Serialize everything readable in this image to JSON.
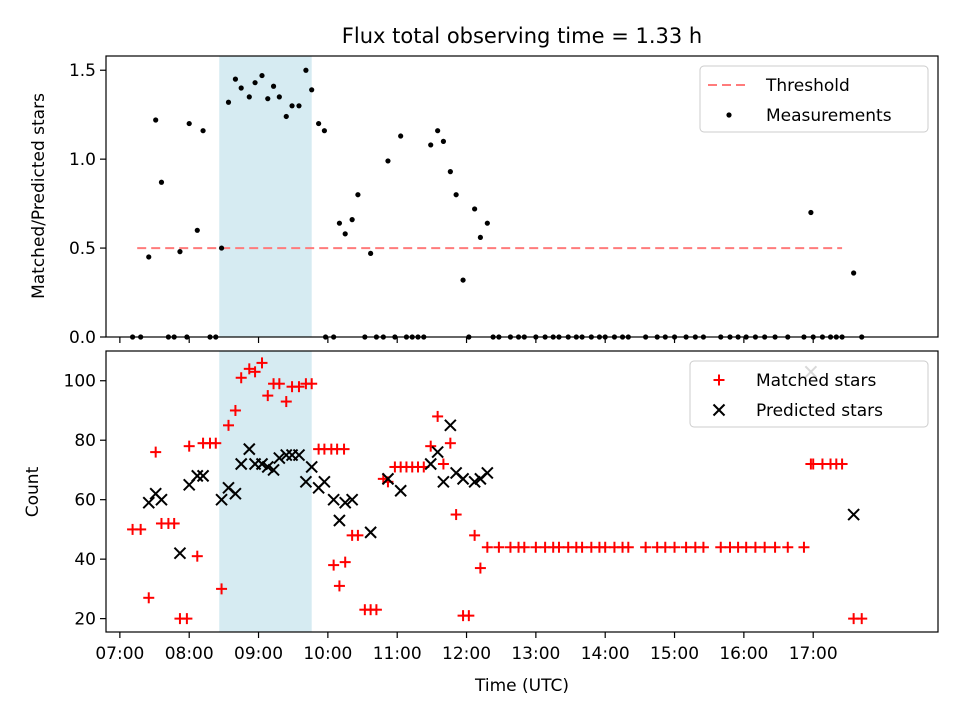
{
  "chart_data": [
    {
      "type": "scatter",
      "title": "Flux total observing time = 1.33 h",
      "xlabel": "",
      "ylabel": "Matched/Predicted stars",
      "xlim": [
        "06:48",
        "18:48"
      ],
      "ylim": [
        0,
        1.58
      ],
      "yticks": [
        0.0,
        0.5,
        1.0,
        1.5
      ],
      "yticklabels": [
        "0.0",
        "0.5",
        "1.0",
        "1.5"
      ],
      "shaded_interval": [
        "08:26",
        "09:46"
      ],
      "legend": {
        "position": "top-right",
        "entries": [
          "Threshold",
          "Measurements"
        ]
      },
      "threshold": {
        "name": "Threshold",
        "y": 0.5,
        "x_range": [
          "07:15",
          "17:25"
        ],
        "color": "#ff7b7b"
      },
      "series": [
        {
          "name": "Measurements",
          "color": "#000000",
          "points": [
            [
              "07:11",
              0
            ],
            [
              "07:18",
              0
            ],
            [
              "07:25",
              0.45
            ],
            [
              "07:31",
              1.22
            ],
            [
              "07:36",
              0.87
            ],
            [
              "07:42",
              0
            ],
            [
              "07:47",
              0
            ],
            [
              "07:52",
              0.48
            ],
            [
              "07:58",
              0
            ],
            [
              "08:00",
              1.2
            ],
            [
              "08:07",
              0.6
            ],
            [
              "08:12",
              1.16
            ],
            [
              "08:18",
              0
            ],
            [
              "08:23",
              0
            ],
            [
              "08:28",
              0.5
            ],
            [
              "08:34",
              1.32
            ],
            [
              "08:40",
              1.45
            ],
            [
              "08:45",
              1.4
            ],
            [
              "08:52",
              1.35
            ],
            [
              "08:57",
              1.43
            ],
            [
              "09:03",
              1.47
            ],
            [
              "09:08",
              1.34
            ],
            [
              "09:13",
              1.41
            ],
            [
              "09:18",
              1.35
            ],
            [
              "09:24",
              1.24
            ],
            [
              "09:29",
              1.3
            ],
            [
              "09:35",
              1.3
            ],
            [
              "09:41",
              1.5
            ],
            [
              "09:46",
              1.39
            ],
            [
              "09:52",
              1.2
            ],
            [
              "09:57",
              1.16
            ],
            [
              "09:58",
              0
            ],
            [
              "10:05",
              0
            ],
            [
              "10:10",
              0.64
            ],
            [
              "10:15",
              0.58
            ],
            [
              "10:21",
              0.66
            ],
            [
              "10:26",
              0.8
            ],
            [
              "10:32",
              0
            ],
            [
              "10:37",
              0.47
            ],
            [
              "10:42",
              0
            ],
            [
              "10:48",
              0
            ],
            [
              "10:52",
              0.99
            ],
            [
              "10:58",
              0
            ],
            [
              "11:03",
              1.13
            ],
            [
              "11:08",
              0
            ],
            [
              "11:13",
              0
            ],
            [
              "11:18",
              0
            ],
            [
              "11:23",
              0
            ],
            [
              "11:29",
              1.08
            ],
            [
              "11:35",
              1.16
            ],
            [
              "11:40",
              1.1
            ],
            [
              "11:46",
              0.93
            ],
            [
              "11:51",
              0.8
            ],
            [
              "11:57",
              0.32
            ],
            [
              "12:02",
              0
            ],
            [
              "12:07",
              0.72
            ],
            [
              "12:12",
              0.56
            ],
            [
              "12:18",
              0.64
            ],
            [
              "12:23",
              0
            ],
            [
              "12:28",
              0
            ],
            [
              "12:38",
              0
            ],
            [
              "12:45",
              0
            ],
            [
              "12:50",
              0
            ],
            [
              "13:00",
              0
            ],
            [
              "13:08",
              0
            ],
            [
              "13:15",
              0
            ],
            [
              "13:20",
              0
            ],
            [
              "13:28",
              0
            ],
            [
              "13:35",
              0
            ],
            [
              "13:40",
              0
            ],
            [
              "13:48",
              0
            ],
            [
              "13:55",
              0
            ],
            [
              "14:00",
              0
            ],
            [
              "14:08",
              0
            ],
            [
              "14:15",
              0
            ],
            [
              "14:20",
              0
            ],
            [
              "14:35",
              0
            ],
            [
              "14:45",
              0
            ],
            [
              "14:52",
              0
            ],
            [
              "15:00",
              0
            ],
            [
              "15:10",
              0
            ],
            [
              "15:18",
              0
            ],
            [
              "15:25",
              0
            ],
            [
              "15:40",
              0
            ],
            [
              "15:48",
              0
            ],
            [
              "15:55",
              0
            ],
            [
              "16:02",
              0
            ],
            [
              "16:10",
              0
            ],
            [
              "16:18",
              0
            ],
            [
              "16:27",
              0
            ],
            [
              "16:38",
              0
            ],
            [
              "16:52",
              0
            ],
            [
              "17:00",
              0
            ],
            [
              "17:08",
              0
            ],
            [
              "17:15",
              0
            ],
            [
              "17:20",
              0
            ],
            [
              "17:25",
              0
            ],
            [
              "16:58",
              0.7
            ],
            [
              "17:35",
              0.36
            ],
            [
              "17:42",
              0
            ]
          ]
        }
      ]
    },
    {
      "type": "scatter",
      "title": "",
      "xlabel": "Time (UTC)",
      "ylabel": "Count",
      "xlim": [
        "06:48",
        "18:48"
      ],
      "ylim": [
        15.5,
        110
      ],
      "xticks": [
        "07:00",
        "08:00",
        "09:00",
        "10:00",
        "11:00",
        "12:00",
        "13:00",
        "14:00",
        "15:00",
        "16:00",
        "17:00"
      ],
      "yticks": [
        20,
        40,
        60,
        80,
        100
      ],
      "yticklabels": [
        "20",
        "40",
        "60",
        "80",
        "100"
      ],
      "shaded_interval": [
        "08:26",
        "09:46"
      ],
      "legend": {
        "position": "top-right",
        "entries": [
          "Matched stars",
          "Predicted stars"
        ]
      },
      "series": [
        {
          "name": "Matched stars",
          "marker": "plus",
          "color": "#ff0000",
          "points": [
            [
              "07:11",
              50
            ],
            [
              "07:18",
              50
            ],
            [
              "07:25",
              27
            ],
            [
              "07:31",
              76
            ],
            [
              "07:36",
              52
            ],
            [
              "07:42",
              52
            ],
            [
              "07:47",
              52
            ],
            [
              "07:52",
              20
            ],
            [
              "07:58",
              20
            ],
            [
              "08:00",
              78
            ],
            [
              "08:07",
              41
            ],
            [
              "08:12",
              79
            ],
            [
              "08:18",
              79
            ],
            [
              "08:23",
              79
            ],
            [
              "08:28",
              30
            ],
            [
              "08:34",
              85
            ],
            [
              "08:40",
              90
            ],
            [
              "08:45",
              101
            ],
            [
              "08:52",
              104
            ],
            [
              "08:57",
              103
            ],
            [
              "09:03",
              106
            ],
            [
              "09:08",
              95
            ],
            [
              "09:13",
              99
            ],
            [
              "09:18",
              99
            ],
            [
              "09:24",
              93
            ],
            [
              "09:29",
              98
            ],
            [
              "09:35",
              98
            ],
            [
              "09:41",
              99
            ],
            [
              "09:46",
              99
            ],
            [
              "09:52",
              77
            ],
            [
              "09:57",
              77
            ],
            [
              "10:03",
              77
            ],
            [
              "10:08",
              77
            ],
            [
              "10:14",
              77
            ],
            [
              "10:05",
              38
            ],
            [
              "10:10",
              31
            ],
            [
              "10:15",
              39
            ],
            [
              "10:21",
              48
            ],
            [
              "10:26",
              48
            ],
            [
              "10:32",
              23
            ],
            [
              "10:37",
              23
            ],
            [
              "10:42",
              23
            ],
            [
              "10:48",
              67
            ],
            [
              "10:52",
              66
            ],
            [
              "10:58",
              71
            ],
            [
              "11:03",
              71
            ],
            [
              "11:08",
              71
            ],
            [
              "11:13",
              71
            ],
            [
              "11:18",
              71
            ],
            [
              "11:23",
              71
            ],
            [
              "11:29",
              78
            ],
            [
              "11:35",
              88
            ],
            [
              "11:40",
              72
            ],
            [
              "11:46",
              79
            ],
            [
              "11:51",
              55
            ],
            [
              "11:57",
              21
            ],
            [
              "12:02",
              21
            ],
            [
              "12:07",
              48
            ],
            [
              "12:12",
              37
            ],
            [
              "12:18",
              44
            ],
            [
              "12:28",
              44
            ],
            [
              "12:38",
              44
            ],
            [
              "12:45",
              44
            ],
            [
              "12:50",
              44
            ],
            [
              "13:00",
              44
            ],
            [
              "13:08",
              44
            ],
            [
              "13:15",
              44
            ],
            [
              "13:20",
              44
            ],
            [
              "13:28",
              44
            ],
            [
              "13:35",
              44
            ],
            [
              "13:40",
              44
            ],
            [
              "13:48",
              44
            ],
            [
              "13:55",
              44
            ],
            [
              "14:00",
              44
            ],
            [
              "14:08",
              44
            ],
            [
              "14:15",
              44
            ],
            [
              "14:20",
              44
            ],
            [
              "14:35",
              44
            ],
            [
              "14:45",
              44
            ],
            [
              "14:52",
              44
            ],
            [
              "15:00",
              44
            ],
            [
              "15:10",
              44
            ],
            [
              "15:18",
              44
            ],
            [
              "15:25",
              44
            ],
            [
              "15:40",
              44
            ],
            [
              "15:48",
              44
            ],
            [
              "15:55",
              44
            ],
            [
              "16:02",
              44
            ],
            [
              "16:10",
              44
            ],
            [
              "16:18",
              44
            ],
            [
              "16:27",
              44
            ],
            [
              "16:38",
              44
            ],
            [
              "16:52",
              44
            ],
            [
              "16:58",
              72
            ],
            [
              "17:00",
              72
            ],
            [
              "17:08",
              72
            ],
            [
              "17:15",
              72
            ],
            [
              "17:20",
              72
            ],
            [
              "17:25",
              72
            ],
            [
              "17:35",
              20
            ],
            [
              "17:42",
              20
            ]
          ]
        },
        {
          "name": "Predicted stars",
          "marker": "x",
          "color": "#000000",
          "points": [
            [
              "07:25",
              59
            ],
            [
              "07:31",
              62
            ],
            [
              "07:36",
              60
            ],
            [
              "07:52",
              42
            ],
            [
              "08:00",
              65
            ],
            [
              "08:07",
              68
            ],
            [
              "08:12",
              68
            ],
            [
              "08:28",
              60
            ],
            [
              "08:34",
              64
            ],
            [
              "08:40",
              62
            ],
            [
              "08:45",
              72
            ],
            [
              "08:52",
              77
            ],
            [
              "08:57",
              72
            ],
            [
              "09:03",
              72
            ],
            [
              "09:08",
              71
            ],
            [
              "09:13",
              70
            ],
            [
              "09:18",
              74
            ],
            [
              "09:24",
              75
            ],
            [
              "09:29",
              75
            ],
            [
              "09:35",
              75
            ],
            [
              "09:41",
              66
            ],
            [
              "09:46",
              71
            ],
            [
              "09:52",
              64
            ],
            [
              "09:57",
              66
            ],
            [
              "10:05",
              60
            ],
            [
              "10:10",
              53
            ],
            [
              "10:15",
              59
            ],
            [
              "10:21",
              60
            ],
            [
              "10:37",
              49
            ],
            [
              "10:52",
              67
            ],
            [
              "11:03",
              63
            ],
            [
              "11:29",
              72
            ],
            [
              "11:35",
              76
            ],
            [
              "11:40",
              66
            ],
            [
              "11:46",
              85
            ],
            [
              "11:51",
              69
            ],
            [
              "11:57",
              67
            ],
            [
              "12:07",
              66
            ],
            [
              "12:12",
              67
            ],
            [
              "12:18",
              69
            ],
            [
              "16:58",
              103
            ],
            [
              "17:35",
              55
            ]
          ]
        }
      ]
    }
  ]
}
